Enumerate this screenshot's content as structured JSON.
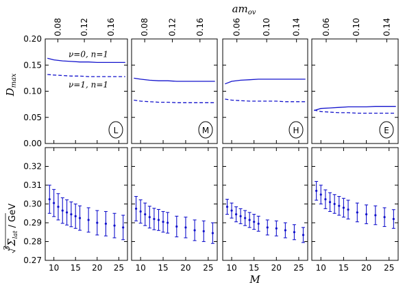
{
  "figure": {
    "top_axis_label": "amₒᵥ",
    "top_axis_label_main": "am",
    "top_axis_label_sub": "ov",
    "bottom_axis_label": "M",
    "top_row_ylabel_main": "D",
    "top_row_ylabel_sub": "max",
    "bottom_row_ylabel": "∛Σₗₐₜ / GeV",
    "bottom_row_ylabel_parts": {
      "root": "3",
      "sigma": "Σ",
      "sub": "lat",
      "unit": " / GeV"
    }
  },
  "chart_data": [
    {
      "type": "line",
      "panel": "L",
      "badge": "L",
      "ylim": [
        0.0,
        0.2
      ],
      "yticks": [
        "0.00",
        "0.05",
        "0.10",
        "0.15",
        "0.20"
      ],
      "top_xticks": [
        "0.08",
        "0.12",
        "0.16"
      ],
      "series": [
        {
          "name": "ν=0, n=1",
          "style": "solid",
          "x": [
            8.5,
            10,
            12,
            14,
            16,
            18,
            20,
            22,
            24,
            26.5
          ],
          "y": [
            0.163,
            0.16,
            0.158,
            0.157,
            0.156,
            0.156,
            0.155,
            0.155,
            0.155,
            0.155
          ]
        },
        {
          "name": "ν=1, n=1",
          "style": "dashed",
          "x": [
            8.5,
            10,
            12,
            14,
            16,
            18,
            20,
            22,
            24,
            26.5
          ],
          "y": [
            0.132,
            0.131,
            0.13,
            0.129,
            0.129,
            0.128,
            0.128,
            0.128,
            0.128,
            0.128
          ]
        }
      ]
    },
    {
      "type": "line",
      "panel": "M",
      "badge": "M",
      "ylim": [
        0.0,
        0.2
      ],
      "top_xticks": [
        "0.08",
        "0.12",
        "0.16"
      ],
      "series": [
        {
          "style": "solid",
          "x": [
            8.5,
            10,
            12,
            14,
            16,
            18,
            20,
            22,
            24,
            26.5
          ],
          "y": [
            0.125,
            0.123,
            0.121,
            0.12,
            0.12,
            0.119,
            0.119,
            0.119,
            0.119,
            0.119
          ]
        },
        {
          "style": "dashed",
          "x": [
            8.5,
            10,
            12,
            14,
            16,
            18,
            20,
            22,
            24,
            26.5
          ],
          "y": [
            0.083,
            0.081,
            0.08,
            0.079,
            0.079,
            0.078,
            0.078,
            0.078,
            0.078,
            0.078
          ]
        }
      ]
    },
    {
      "type": "line",
      "panel": "H",
      "badge": "H",
      "ylim": [
        0.0,
        0.2
      ],
      "top_xticks": [
        "0.06",
        "0.10",
        "0.14"
      ],
      "series": [
        {
          "style": "solid",
          "x": [
            8.5,
            10,
            12,
            14,
            16,
            18,
            20,
            22,
            24,
            26.5
          ],
          "y": [
            0.114,
            0.119,
            0.121,
            0.122,
            0.123,
            0.123,
            0.123,
            0.123,
            0.123,
            0.123
          ]
        },
        {
          "style": "dashed",
          "x": [
            8.5,
            10,
            12,
            14,
            16,
            18,
            20,
            22,
            24,
            26.5
          ],
          "y": [
            0.085,
            0.083,
            0.082,
            0.081,
            0.081,
            0.081,
            0.081,
            0.08,
            0.08,
            0.08
          ]
        }
      ]
    },
    {
      "type": "line",
      "panel": "E",
      "badge": "E",
      "ylim": [
        0.0,
        0.2
      ],
      "top_xticks": [
        "0.06",
        "0.10",
        "0.14"
      ],
      "series": [
        {
          "style": "solid",
          "x": [
            8.5,
            10,
            12,
            14,
            16,
            18,
            20,
            22,
            24,
            26.5
          ],
          "y": [
            0.063,
            0.067,
            0.068,
            0.069,
            0.07,
            0.07,
            0.07,
            0.071,
            0.071,
            0.071
          ]
        },
        {
          "style": "dashed",
          "x": [
            8.5,
            10,
            12,
            14,
            16,
            18,
            20,
            22,
            24,
            26.5
          ],
          "y": [
            0.064,
            0.061,
            0.06,
            0.059,
            0.059,
            0.058,
            0.058,
            0.058,
            0.058,
            0.058
          ]
        }
      ]
    },
    {
      "type": "scatter",
      "panel": "L",
      "ylim": [
        0.27,
        0.33
      ],
      "yticks": [
        "0.27",
        "0.28",
        "0.29",
        "0.30",
        "0.31",
        "0.32"
      ],
      "xticks": [
        "10",
        "15",
        "20",
        "25"
      ],
      "x": [
        9,
        10,
        11,
        12,
        13,
        14,
        15,
        16,
        18,
        20,
        22,
        24,
        26
      ],
      "y": [
        0.3025,
        0.3005,
        0.2985,
        0.2965,
        0.2955,
        0.2945,
        0.2935,
        0.2925,
        0.2915,
        0.29,
        0.2895,
        0.2885,
        0.2875
      ],
      "err": [
        0.0075,
        0.0072,
        0.007,
        0.0068,
        0.0067,
        0.0066,
        0.0065,
        0.0065,
        0.0065,
        0.0065,
        0.0065,
        0.0065,
        0.0065
      ]
    },
    {
      "type": "scatter",
      "panel": "M",
      "ylim": [
        0.27,
        0.33
      ],
      "xticks": [
        "10",
        "15",
        "20",
        "25"
      ],
      "x": [
        9,
        10,
        11,
        12,
        13,
        14,
        15,
        16,
        18,
        20,
        22,
        24,
        26
      ],
      "y": [
        0.2975,
        0.296,
        0.2945,
        0.293,
        0.292,
        0.2915,
        0.2905,
        0.29,
        0.288,
        0.2875,
        0.286,
        0.2855,
        0.2845
      ],
      "err": [
        0.0065,
        0.0062,
        0.006,
        0.0058,
        0.0057,
        0.0056,
        0.0055,
        0.0055,
        0.0055,
        0.0055,
        0.0055,
        0.0055,
        0.0055
      ]
    },
    {
      "type": "scatter",
      "panel": "H",
      "ylim": [
        0.27,
        0.33
      ],
      "xticks": [
        "10",
        "15",
        "20",
        "25"
      ],
      "x": [
        9,
        10,
        11,
        12,
        13,
        14,
        15,
        16,
        18,
        20,
        22,
        24,
        26
      ],
      "y": [
        0.2985,
        0.2965,
        0.2945,
        0.2935,
        0.2925,
        0.2915,
        0.2905,
        0.2895,
        0.2875,
        0.287,
        0.286,
        0.285,
        0.2835
      ],
      "err": [
        0.004,
        0.004,
        0.004,
        0.004,
        0.004,
        0.004,
        0.004,
        0.004,
        0.004,
        0.004,
        0.004,
        0.004,
        0.004
      ]
    },
    {
      "type": "scatter",
      "panel": "E",
      "ylim": [
        0.27,
        0.33
      ],
      "xticks": [
        "10",
        "15",
        "20",
        "25"
      ],
      "x": [
        9,
        10,
        11,
        12,
        13,
        14,
        15,
        16,
        18,
        20,
        22,
        24,
        26
      ],
      "y": [
        0.307,
        0.305,
        0.3025,
        0.301,
        0.3,
        0.299,
        0.298,
        0.297,
        0.2955,
        0.2945,
        0.294,
        0.293,
        0.292
      ],
      "err": [
        0.005,
        0.005,
        0.005,
        0.005,
        0.005,
        0.005,
        0.005,
        0.005,
        0.005,
        0.005,
        0.005,
        0.005,
        0.005
      ]
    }
  ],
  "colors": {
    "series": "#1111cc",
    "axis": "#000000"
  }
}
